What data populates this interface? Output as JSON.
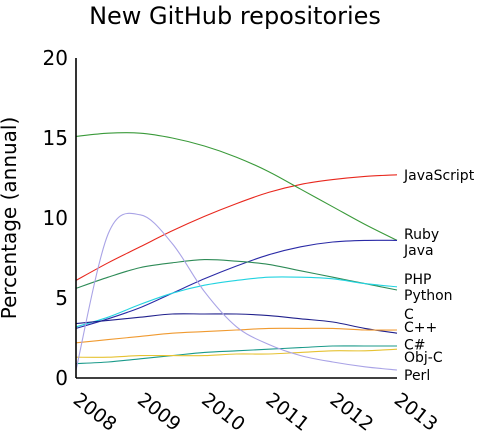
{
  "chart_data": {
    "type": "line",
    "title": "New GitHub repositories",
    "xlabel": "",
    "ylabel": "Percentage (annual)",
    "ylim": [
      0,
      20
    ],
    "xlim": [
      2008,
      2013
    ],
    "x_ticks": [
      "2008",
      "2009",
      "2010",
      "2011",
      "2012",
      "2013"
    ],
    "y_ticks": [
      "0",
      "5",
      "10",
      "15",
      "20"
    ],
    "grid": false,
    "legend": "labels at right end of lines",
    "x": [
      2008,
      2008.5,
      2009,
      2009.5,
      2010,
      2010.5,
      2011,
      2011.5,
      2012,
      2012.5,
      2013
    ],
    "series": [
      {
        "name": "JavaScript",
        "color": "#e8281e",
        "values": [
          6.1,
          7.2,
          8.2,
          9.2,
          10.1,
          10.9,
          11.6,
          12.1,
          12.4,
          12.6,
          12.7
        ]
      },
      {
        "name": "Ruby",
        "color": "#3a9a3a",
        "values": [
          15.1,
          15.3,
          15.3,
          15.0,
          14.5,
          13.8,
          12.9,
          11.8,
          10.7,
          9.6,
          8.6
        ]
      },
      {
        "name": "Java",
        "color": "#2a2aa6",
        "values": [
          3.1,
          3.7,
          4.4,
          5.3,
          6.2,
          7.0,
          7.7,
          8.2,
          8.5,
          8.6,
          8.6
        ]
      },
      {
        "name": "PHP",
        "color": "#2e8b57",
        "values": [
          5.6,
          6.3,
          6.9,
          7.2,
          7.4,
          7.3,
          7.1,
          6.7,
          6.3,
          5.9,
          5.5
        ]
      },
      {
        "name": "Python",
        "color": "#22d3e0",
        "values": [
          3.2,
          3.8,
          4.6,
          5.3,
          5.8,
          6.1,
          6.3,
          6.3,
          6.2,
          5.9,
          5.7
        ]
      },
      {
        "name": "C",
        "color": "#20208c",
        "values": [
          3.4,
          3.6,
          3.8,
          4.0,
          4.0,
          4.0,
          3.9,
          3.7,
          3.5,
          3.1,
          2.8
        ]
      },
      {
        "name": "C++",
        "color": "#f09a30",
        "values": [
          2.2,
          2.4,
          2.6,
          2.8,
          2.9,
          3.0,
          3.1,
          3.1,
          3.1,
          3.0,
          3.0
        ]
      },
      {
        "name": "C#",
        "color": "#1a9a8a",
        "values": [
          0.9,
          1.0,
          1.2,
          1.4,
          1.6,
          1.7,
          1.8,
          1.9,
          2.0,
          2.0,
          2.0
        ]
      },
      {
        "name": "Obj-C",
        "color": "#e6c232",
        "values": [
          1.3,
          1.3,
          1.4,
          1.4,
          1.4,
          1.5,
          1.5,
          1.6,
          1.7,
          1.7,
          1.8
        ]
      },
      {
        "name": "Perl",
        "color": "#a9a3e6",
        "values": [
          0.5,
          9.0,
          10.2,
          8.4,
          5.4,
          3.2,
          2.1,
          1.4,
          1.0,
          0.7,
          0.5
        ]
      }
    ],
    "end_labels": [
      {
        "series": "JavaScript",
        "text": "JavaScript",
        "y": 12.7
      },
      {
        "series": "Ruby",
        "text": "Ruby",
        "y": 9.0
      },
      {
        "series": "Java",
        "text": "Java",
        "y": 8.0
      },
      {
        "series": "PHP",
        "text": "PHP",
        "y": 6.2
      },
      {
        "series": "Python",
        "text": "Python",
        "y": 5.2
      },
      {
        "series": "C",
        "text": "C",
        "y": 4.0
      },
      {
        "series": "C++",
        "text": "C++",
        "y": 3.2
      },
      {
        "series": "C#",
        "text": "C#",
        "y": 2.1
      },
      {
        "series": "Obj-C",
        "text": "Obj-C",
        "y": 1.3
      },
      {
        "series": "Perl",
        "text": "Perl",
        "y": 0.2
      }
    ]
  }
}
